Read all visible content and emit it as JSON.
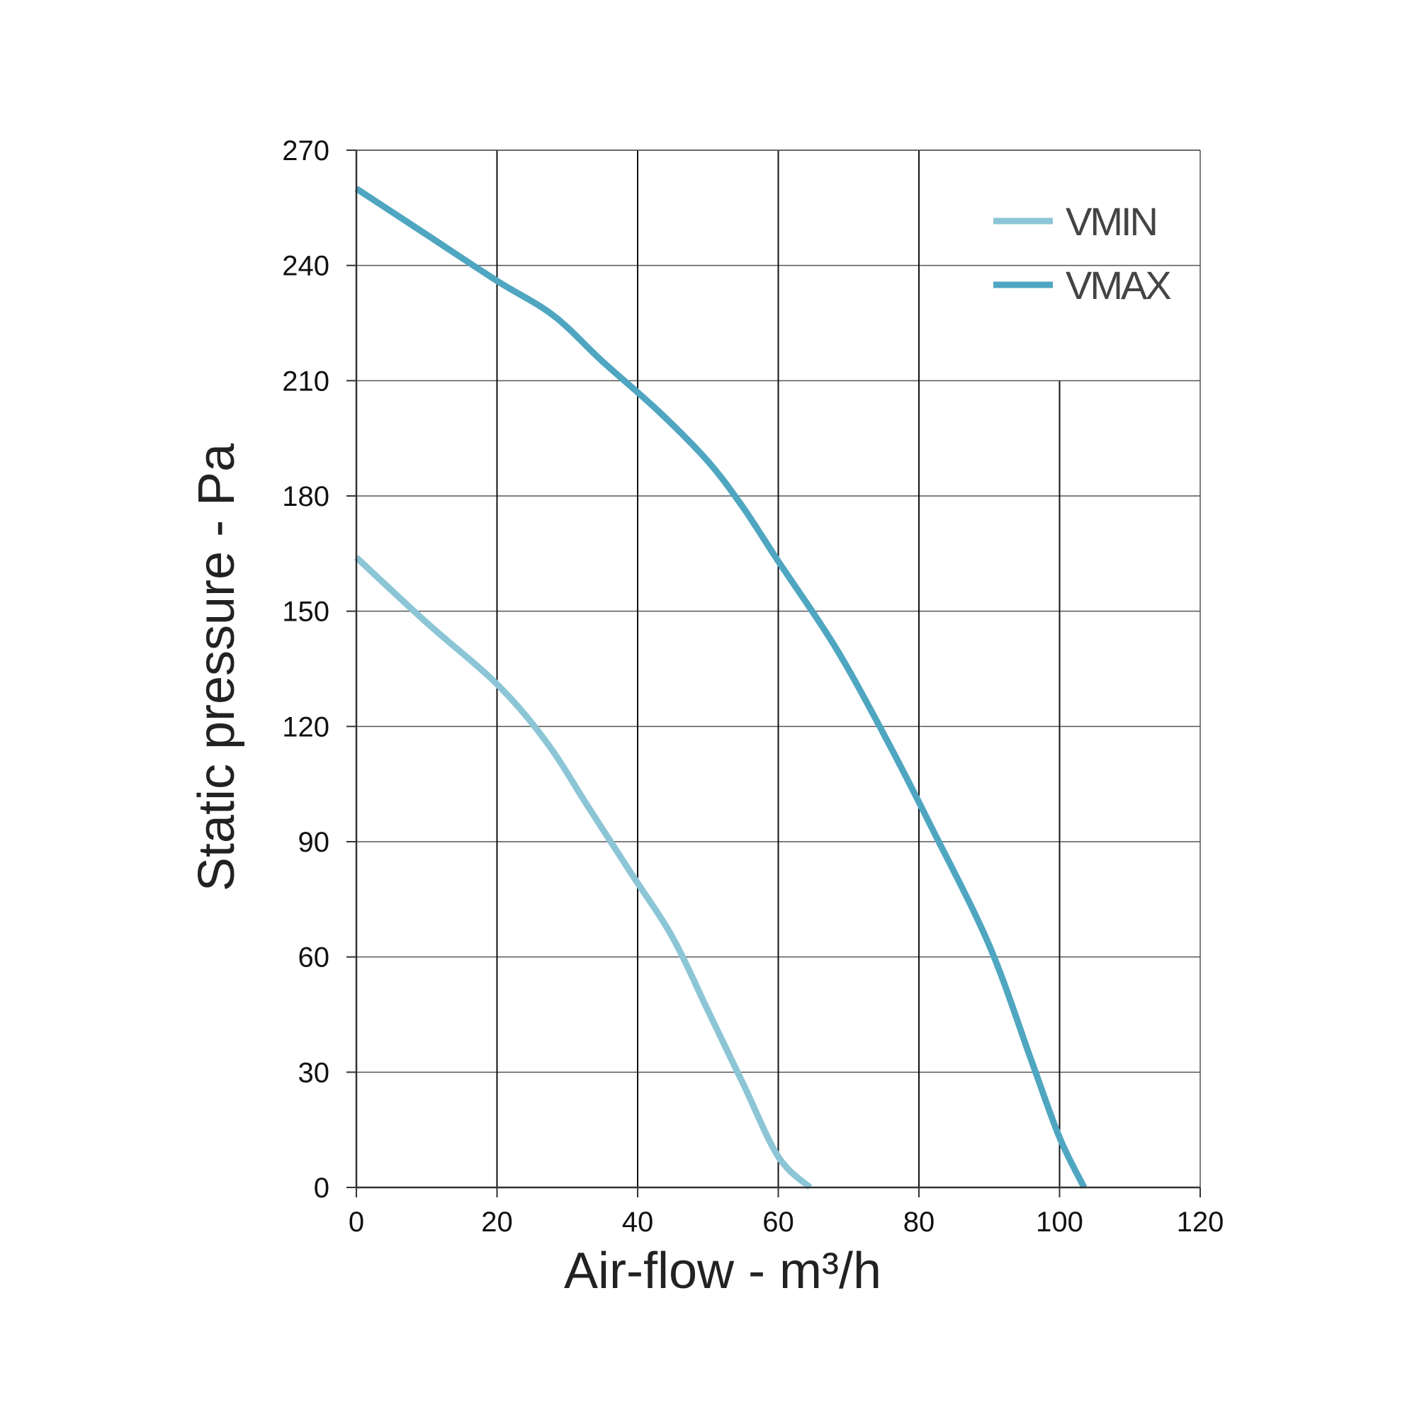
{
  "chart_data": {
    "type": "line",
    "title": "",
    "xlabel": "Air-flow - m³/h",
    "ylabel": "Static pressure - Pa",
    "xlim": [
      0,
      120
    ],
    "ylim": [
      0,
      270
    ],
    "xticks": [
      "0",
      "20",
      "40",
      "60",
      "80",
      "100",
      "120"
    ],
    "yticks": [
      "0",
      "30",
      "60",
      "90",
      "120",
      "150",
      "180",
      "210",
      "240",
      "270"
    ],
    "grid": true,
    "legend_position": "top-right",
    "series": [
      {
        "name": "VMIN",
        "color": "#8cc6d6",
        "x": [
          0,
          10,
          20,
          27,
          33,
          39,
          45,
          50,
          55,
          60,
          64.5
        ],
        "y": [
          164,
          147,
          131,
          116,
          99,
          82,
          65,
          46,
          27,
          8,
          0
        ]
      },
      {
        "name": "VMAX",
        "color": "#4fa6c1",
        "x": [
          0,
          10,
          20,
          28,
          35,
          43,
          50,
          55,
          60,
          68,
          75,
          82,
          90,
          96,
          100,
          103.5
        ],
        "y": [
          260,
          248,
          236,
          227,
          215,
          202,
          189,
          177,
          163,
          141,
          118,
          93,
          63,
          33,
          13,
          0
        ]
      }
    ]
  }
}
